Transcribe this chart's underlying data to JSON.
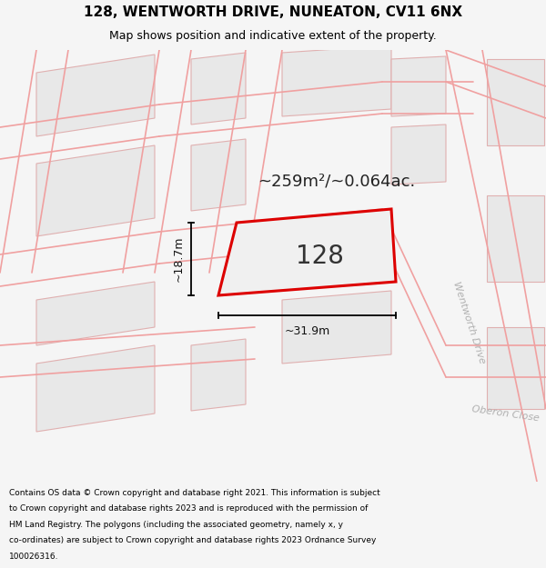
{
  "title_line1": "128, WENTWORTH DRIVE, NUNEATON, CV11 6NX",
  "title_line2": "Map shows position and indicative extent of the property.",
  "area_text": "~259m²/~0.064ac.",
  "label_128": "128",
  "dim_width": "~31.9m",
  "dim_height": "~18.7m",
  "road_label1": "Wentworth Drive",
  "road_label2": "Oberon Close",
  "footer_lines": [
    "Contains OS data © Crown copyright and database right 2021. This information is subject",
    "to Crown copyright and database rights 2023 and is reproduced with the permission of",
    "HM Land Registry. The polygons (including the associated geometry, namely x, y",
    "co-ordinates) are subject to Crown copyright and database rights 2023 Ordnance Survey",
    "100026316."
  ],
  "bg_color": "#f5f5f5",
  "map_bg_color": "#ffffff",
  "plot_fill_color": "#f0f0f0",
  "plot_edge_color": "#dd0000",
  "road_line_color": "#f0a0a0",
  "building_fill": "#e8e8e8",
  "building_edge": "#e0b0b0",
  "dim_line_color": "#000000",
  "title_color": "#000000",
  "footer_color": "#000000",
  "road_text_color": "#b0b0b0",
  "area_fontsize": 13,
  "label_fontsize": 20,
  "dim_fontsize": 9,
  "title_fontsize": 11,
  "subtitle_fontsize": 9,
  "footer_fontsize": 6.5,
  "road_fontsize": 8
}
